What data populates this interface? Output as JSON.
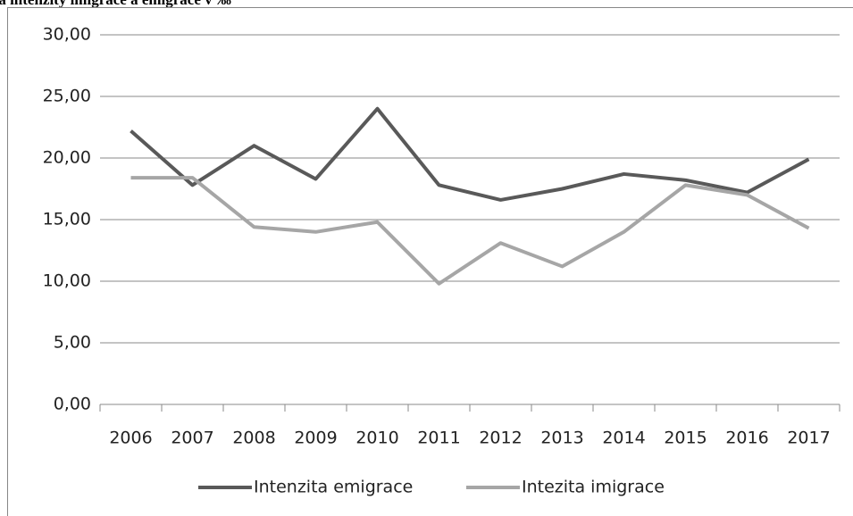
{
  "chart_data": {
    "type": "line",
    "title": "Míra intenzity imigrace a emigrace v ‰",
    "categories": [
      "2006",
      "2007",
      "2008",
      "2009",
      "2010",
      "2011",
      "2012",
      "2013",
      "2014",
      "2015",
      "2016",
      "2017"
    ],
    "series": [
      {
        "name": "Intenzita emigrace",
        "color": "#595959",
        "values": [
          22.2,
          17.8,
          21.0,
          18.3,
          24.0,
          17.8,
          16.6,
          17.5,
          18.7,
          18.2,
          17.2,
          19.9
        ]
      },
      {
        "name": "Intezita imigrace",
        "color": "#a6a6a6",
        "values": [
          18.4,
          18.4,
          14.4,
          14.0,
          14.8,
          9.8,
          13.1,
          11.2,
          14.0,
          17.8,
          17.0,
          14.3
        ]
      }
    ],
    "ylim": [
      0,
      30
    ],
    "yticks": [
      {
        "value": 0,
        "label": "0,00"
      },
      {
        "value": 5,
        "label": "5,00"
      },
      {
        "value": 10,
        "label": "10,00"
      },
      {
        "value": 15,
        "label": "15,00"
      },
      {
        "value": 20,
        "label": "20,00"
      },
      {
        "value": 25,
        "label": "25,00"
      },
      {
        "value": 30,
        "label": "30,00"
      }
    ],
    "grid": true,
    "legend": "bottom"
  }
}
